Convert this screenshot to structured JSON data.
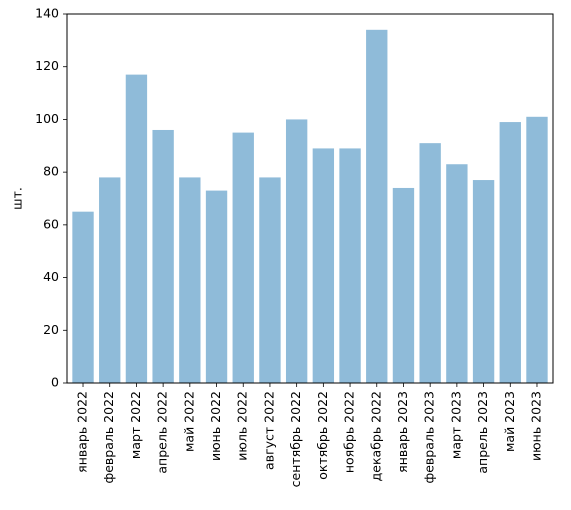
{
  "chart_data": {
    "type": "bar",
    "title": "",
    "xlabel": "",
    "ylabel": "шт.",
    "ylim": [
      0,
      140
    ],
    "yticks": [
      0,
      20,
      40,
      60,
      80,
      100,
      120,
      140
    ],
    "grid": false,
    "legend": "none",
    "bar_color": "#8fbbd9",
    "categories": [
      "январь 2022",
      "февраль 2022",
      "март 2022",
      "апрель 2022",
      "май 2022",
      "июнь 2022",
      "июль 2022",
      "август 2022",
      "сентябрь 2022",
      "октябрь 2022",
      "ноябрь 2022",
      "декабрь 2022",
      "январь 2023",
      "февраль 2023",
      "март 2023",
      "апрель 2023",
      "май 2023",
      "июнь 2023"
    ],
    "values": [
      65,
      78,
      117,
      96,
      78,
      73,
      95,
      78,
      100,
      89,
      89,
      134,
      74,
      91,
      83,
      77,
      99,
      101
    ]
  }
}
